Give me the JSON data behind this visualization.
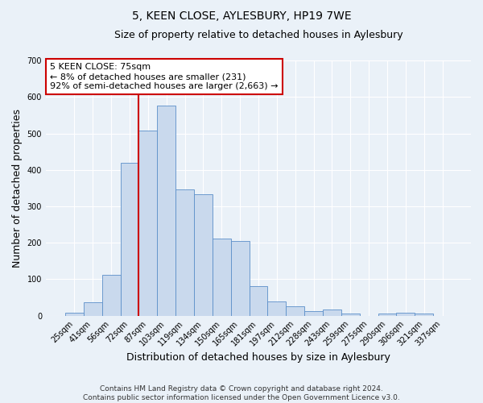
{
  "title": "5, KEEN CLOSE, AYLESBURY, HP19 7WE",
  "subtitle": "Size of property relative to detached houses in Aylesbury",
  "xlabel": "Distribution of detached houses by size in Aylesbury",
  "ylabel": "Number of detached properties",
  "bar_labels": [
    "25sqm",
    "41sqm",
    "56sqm",
    "72sqm",
    "87sqm",
    "103sqm",
    "119sqm",
    "134sqm",
    "150sqm",
    "165sqm",
    "181sqm",
    "197sqm",
    "212sqm",
    "228sqm",
    "243sqm",
    "259sqm",
    "275sqm",
    "290sqm",
    "306sqm",
    "321sqm",
    "337sqm"
  ],
  "bar_values": [
    8,
    37,
    112,
    420,
    508,
    577,
    346,
    333,
    211,
    204,
    82,
    40,
    26,
    13,
    16,
    5,
    0,
    5,
    8,
    5,
    0
  ],
  "bar_color": "#c9d9ed",
  "bar_edge_color": "#5b8fc9",
  "vline_color": "#cc0000",
  "ylim": [
    0,
    700
  ],
  "yticks": [
    0,
    100,
    200,
    300,
    400,
    500,
    600,
    700
  ],
  "annotation_title": "5 KEEN CLOSE: 75sqm",
  "annotation_line1": "← 8% of detached houses are smaller (231)",
  "annotation_line2": "92% of semi-detached houses are larger (2,663) →",
  "annotation_box_color": "#ffffff",
  "annotation_box_edge": "#cc0000",
  "footer1": "Contains HM Land Registry data © Crown copyright and database right 2024.",
  "footer2": "Contains public sector information licensed under the Open Government Licence v3.0.",
  "bg_color": "#eaf1f8",
  "grid_color": "#ffffff",
  "title_fontsize": 10,
  "subtitle_fontsize": 9,
  "axis_label_fontsize": 9,
  "tick_fontsize": 7,
  "footer_fontsize": 6.5,
  "annotation_fontsize": 8
}
